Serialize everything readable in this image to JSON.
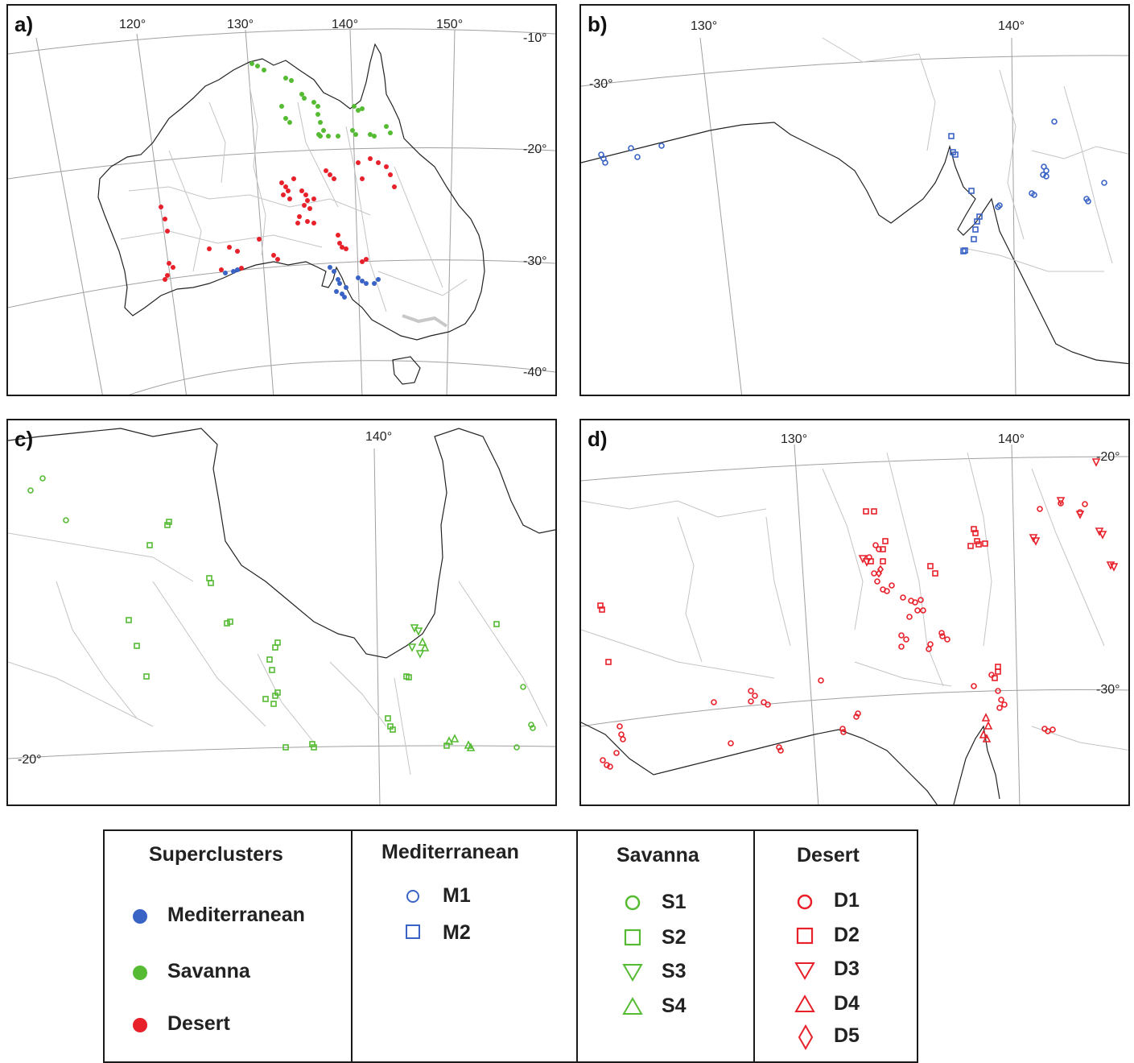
{
  "colors": {
    "mediterranean": "#3a63c6",
    "savanna": "#55bb33",
    "desert": "#e8202a",
    "coast": "#222222",
    "rivers": "#b8b8b8",
    "grid": "#a0a0a0"
  },
  "panels": [
    {
      "label": "a)",
      "lon_ticks": [
        "120°",
        "130°",
        "140°",
        "150°"
      ],
      "lat_ticks": [
        "-10°",
        "-20°",
        "-30°",
        "-40°"
      ]
    },
    {
      "label": "b)",
      "lon_ticks": [
        "130°",
        "140°"
      ],
      "lat_ticks": [
        "-30°"
      ]
    },
    {
      "label": "c)",
      "lon_ticks": [
        "140°"
      ],
      "lat_ticks": [
        "-20°"
      ]
    },
    {
      "label": "d)",
      "lon_ticks": [
        "130°",
        "140°"
      ],
      "lat_ticks": [
        "-20°",
        "-30°"
      ]
    }
  ],
  "legend": {
    "superclusters": {
      "title": "Superclusters",
      "items": [
        {
          "label": "Mediterranean",
          "color_key": "mediterranean",
          "symbol": "filled-circle"
        },
        {
          "label": "Savanna",
          "color_key": "savanna",
          "symbol": "filled-circle"
        },
        {
          "label": "Desert",
          "color_key": "desert",
          "symbol": "filled-circle"
        }
      ]
    },
    "mediterranean": {
      "title": "Mediterranean",
      "items": [
        {
          "label": "M1",
          "symbol": "circle"
        },
        {
          "label": "M2",
          "symbol": "square"
        }
      ]
    },
    "savanna": {
      "title": "Savanna",
      "items": [
        {
          "label": "S1",
          "symbol": "circle"
        },
        {
          "label": "S2",
          "symbol": "square"
        },
        {
          "label": "S3",
          "symbol": "triangle-down"
        },
        {
          "label": "S4",
          "symbol": "triangle-up"
        }
      ]
    },
    "desert": {
      "title": "Desert",
      "items": [
        {
          "label": "D1",
          "symbol": "circle"
        },
        {
          "label": "D2",
          "symbol": "square"
        },
        {
          "label": "D3",
          "symbol": "triangle-down"
        },
        {
          "label": "D4",
          "symbol": "triangle-up"
        },
        {
          "label": "D5",
          "symbol": "diamond"
        }
      ]
    }
  }
}
